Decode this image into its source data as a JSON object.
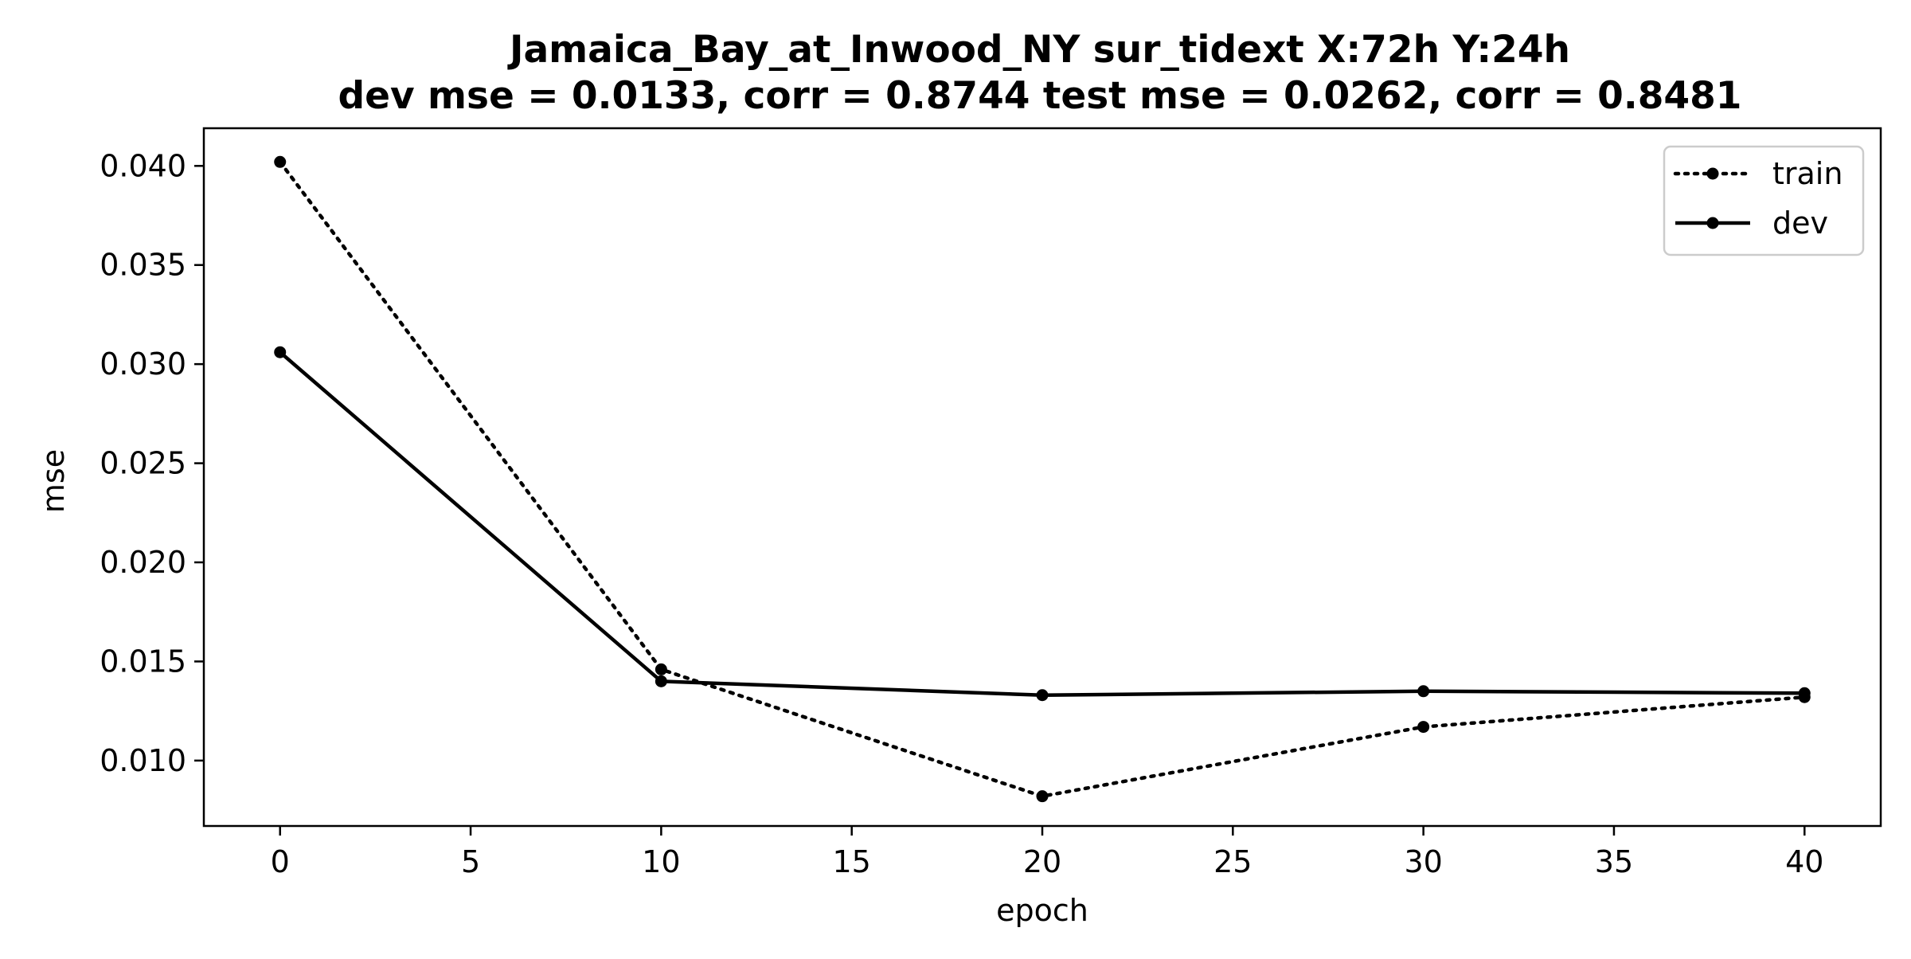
{
  "chart_data": {
    "type": "line",
    "title": "Jamaica_Bay_at_Inwood_NY   sur_tidext   X:72h   Y:24h",
    "subtitle": "dev mse = 0.0133, corr = 0.8744   test mse = 0.0262, corr = 0.8481",
    "xlabel": "epoch",
    "ylabel": "mse",
    "xlim": [
      -2,
      42
    ],
    "ylim": [
      0.0067,
      0.0419
    ],
    "xticks": [
      0,
      5,
      10,
      15,
      20,
      25,
      30,
      35,
      40
    ],
    "xtick_labels": [
      "0",
      "5",
      "10",
      "15",
      "20",
      "25",
      "30",
      "35",
      "40"
    ],
    "yticks": [
      0.01,
      0.015,
      0.02,
      0.025,
      0.03,
      0.035,
      0.04
    ],
    "ytick_labels": [
      "0.010",
      "0.015",
      "0.020",
      "0.025",
      "0.030",
      "0.035",
      "0.040"
    ],
    "grid": false,
    "legend_position": "top-right",
    "x": [
      0,
      10,
      20,
      30,
      40
    ],
    "series": [
      {
        "name": "train",
        "style": "dotted",
        "color": "#000000",
        "values": [
          0.0402,
          0.0146,
          0.0082,
          0.0117,
          0.0132
        ]
      },
      {
        "name": "dev",
        "style": "solid",
        "color": "#000000",
        "values": [
          0.0306,
          0.014,
          0.0133,
          0.0135,
          0.0134
        ]
      }
    ]
  }
}
